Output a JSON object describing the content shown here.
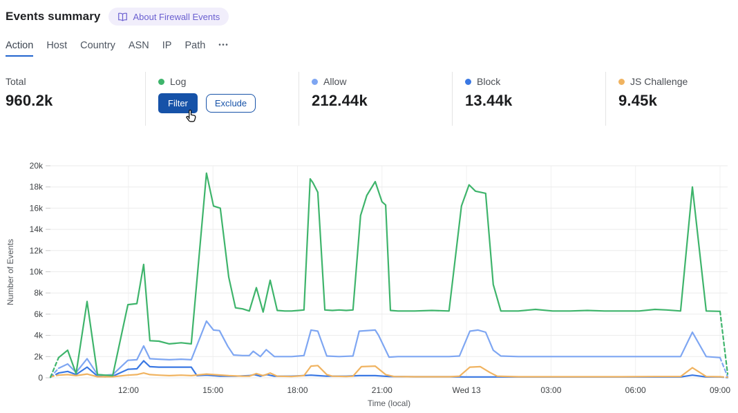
{
  "header": {
    "title": "Events summary",
    "about_label": "About Firewall Events"
  },
  "tabs": {
    "items": [
      {
        "label": "Action",
        "active": true
      },
      {
        "label": "Host"
      },
      {
        "label": "Country"
      },
      {
        "label": "ASN"
      },
      {
        "label": "IP"
      },
      {
        "label": "Path"
      },
      {
        "label": "•••"
      }
    ]
  },
  "stats": {
    "total": {
      "label": "Total",
      "value": "960.2k"
    },
    "log": {
      "label": "Log",
      "filter_label": "Filter",
      "exclude_label": "Exclude"
    },
    "allow": {
      "label": "Allow",
      "value": "212.44k"
    },
    "block": {
      "label": "Block",
      "value": "13.44k"
    },
    "js_challenge": {
      "label": "JS Challenge",
      "value": "9.45k"
    }
  },
  "colors": {
    "log": "#3eb46b",
    "allow": "#7ea6f2",
    "block": "#3a78e3",
    "js_challenge": "#f0b360",
    "accent_blue": "#1652a8",
    "tab_underline": "#2164ce",
    "pill_bg": "#f1eefb",
    "pill_text": "#6a5fd0",
    "grid": "#ebebeb",
    "tick_text": "#3d4043",
    "axis_title": "#55595e"
  },
  "chart_data": {
    "type": "line",
    "title": "",
    "xlabel": "Time (local)",
    "ylabel": "Number of Events",
    "unit": "k",
    "ylim": [
      0,
      20
    ],
    "x_range_hours": [
      0,
      24.04
    ],
    "grid": true,
    "legend_position": "stats-row-above",
    "y_ticks": [
      {
        "v": 0,
        "label": "0"
      },
      {
        "v": 2,
        "label": "2k"
      },
      {
        "v": 4,
        "label": "4k"
      },
      {
        "v": 6,
        "label": "6k"
      },
      {
        "v": 8,
        "label": "8k"
      },
      {
        "v": 10,
        "label": "10k"
      },
      {
        "v": 12,
        "label": "12k"
      },
      {
        "v": 14,
        "label": "14k"
      },
      {
        "v": 16,
        "label": "16k"
      },
      {
        "v": 18,
        "label": "18k"
      },
      {
        "v": 20,
        "label": "20k"
      }
    ],
    "x_ticks": [
      {
        "h": 2.77,
        "label": "12:00"
      },
      {
        "h": 5.77,
        "label": "15:00"
      },
      {
        "h": 8.77,
        "label": "18:00"
      },
      {
        "h": 11.77,
        "label": "21:00"
      },
      {
        "h": 14.77,
        "label": "Wed 13"
      },
      {
        "h": 17.77,
        "label": "03:00"
      },
      {
        "h": 20.77,
        "label": "06:00"
      },
      {
        "h": 23.77,
        "label": "09:00"
      }
    ],
    "series": [
      {
        "id": "log",
        "name": "Log",
        "color_key": "log",
        "dash_head": 2,
        "dash_tail": 2,
        "points": [
          [
            0,
            0.05
          ],
          [
            0.29,
            1.9
          ],
          [
            0.61,
            2.6
          ],
          [
            0.91,
            0.4
          ],
          [
            1.3,
            7.2
          ],
          [
            1.67,
            0.3
          ],
          [
            1.94,
            0.25
          ],
          [
            2.21,
            0.2
          ],
          [
            2.75,
            6.9
          ],
          [
            3.07,
            7.0
          ],
          [
            3.31,
            10.7
          ],
          [
            3.53,
            3.5
          ],
          [
            3.85,
            3.45
          ],
          [
            4.22,
            3.2
          ],
          [
            4.64,
            3.3
          ],
          [
            5.0,
            3.2
          ],
          [
            5.54,
            19.3
          ],
          [
            5.79,
            16.2
          ],
          [
            6.03,
            16.0
          ],
          [
            6.33,
            9.5
          ],
          [
            6.57,
            6.6
          ],
          [
            6.82,
            6.5
          ],
          [
            7.06,
            6.3
          ],
          [
            7.31,
            8.5
          ],
          [
            7.55,
            6.2
          ],
          [
            7.8,
            9.2
          ],
          [
            8.05,
            6.35
          ],
          [
            8.32,
            6.3
          ],
          [
            8.56,
            6.3
          ],
          [
            8.81,
            6.35
          ],
          [
            9.0,
            6.4
          ],
          [
            9.22,
            18.76
          ],
          [
            9.32,
            18.4
          ],
          [
            9.49,
            17.5
          ],
          [
            9.74,
            6.4
          ],
          [
            10.01,
            6.35
          ],
          [
            10.25,
            6.4
          ],
          [
            10.5,
            6.35
          ],
          [
            10.74,
            6.4
          ],
          [
            11.01,
            15.3
          ],
          [
            11.23,
            17.2
          ],
          [
            11.53,
            18.5
          ],
          [
            11.77,
            16.6
          ],
          [
            11.9,
            16.3
          ],
          [
            12.07,
            6.35
          ],
          [
            12.34,
            6.3
          ],
          [
            12.93,
            6.3
          ],
          [
            13.54,
            6.35
          ],
          [
            14.15,
            6.3
          ],
          [
            14.59,
            16.2
          ],
          [
            14.86,
            18.2
          ],
          [
            15.09,
            17.6
          ],
          [
            15.45,
            17.4
          ],
          [
            15.72,
            8.8
          ],
          [
            15.99,
            6.3
          ],
          [
            16.61,
            6.3
          ],
          [
            17.22,
            6.45
          ],
          [
            17.83,
            6.3
          ],
          [
            18.45,
            6.3
          ],
          [
            19.06,
            6.35
          ],
          [
            19.67,
            6.3
          ],
          [
            20.28,
            6.3
          ],
          [
            20.9,
            6.3
          ],
          [
            21.46,
            6.45
          ],
          [
            21.88,
            6.4
          ],
          [
            22.37,
            6.3
          ],
          [
            22.79,
            18.0
          ],
          [
            23.28,
            6.3
          ],
          [
            23.77,
            6.27
          ],
          [
            24.04,
            0.35
          ]
        ]
      },
      {
        "id": "allow",
        "name": "Allow",
        "color_key": "allow",
        "dash_head": 2,
        "dash_tail": 2,
        "points": [
          [
            0,
            0.05
          ],
          [
            0.29,
            0.9
          ],
          [
            0.61,
            1.3
          ],
          [
            0.91,
            0.5
          ],
          [
            1.3,
            1.8
          ],
          [
            1.67,
            0.3
          ],
          [
            1.94,
            0.25
          ],
          [
            2.21,
            0.3
          ],
          [
            2.75,
            1.65
          ],
          [
            3.07,
            1.7
          ],
          [
            3.31,
            3.0
          ],
          [
            3.53,
            1.8
          ],
          [
            3.85,
            1.75
          ],
          [
            4.22,
            1.7
          ],
          [
            4.64,
            1.75
          ],
          [
            5.0,
            1.7
          ],
          [
            5.54,
            5.35
          ],
          [
            5.79,
            4.5
          ],
          [
            6.0,
            4.45
          ],
          [
            6.3,
            2.95
          ],
          [
            6.5,
            2.15
          ],
          [
            6.82,
            2.1
          ],
          [
            7.06,
            2.1
          ],
          [
            7.2,
            2.5
          ],
          [
            7.45,
            2.0
          ],
          [
            7.66,
            2.65
          ],
          [
            7.95,
            2.0
          ],
          [
            8.32,
            2.0
          ],
          [
            8.56,
            2.0
          ],
          [
            8.81,
            2.05
          ],
          [
            9.0,
            2.1
          ],
          [
            9.25,
            4.5
          ],
          [
            9.49,
            4.4
          ],
          [
            9.81,
            2.05
          ],
          [
            10.25,
            2.0
          ],
          [
            10.74,
            2.05
          ],
          [
            10.96,
            4.4
          ],
          [
            11.53,
            4.5
          ],
          [
            11.65,
            4.0
          ],
          [
            12.02,
            1.95
          ],
          [
            12.34,
            2.0
          ],
          [
            12.93,
            2.0
          ],
          [
            13.54,
            2.0
          ],
          [
            14.15,
            2.0
          ],
          [
            14.52,
            2.05
          ],
          [
            14.89,
            4.4
          ],
          [
            15.18,
            4.5
          ],
          [
            15.45,
            4.3
          ],
          [
            15.72,
            2.6
          ],
          [
            15.99,
            2.05
          ],
          [
            16.61,
            2.0
          ],
          [
            17.22,
            2.0
          ],
          [
            17.83,
            2.0
          ],
          [
            18.45,
            2.0
          ],
          [
            19.06,
            2.0
          ],
          [
            19.67,
            2.0
          ],
          [
            20.28,
            2.0
          ],
          [
            20.9,
            2.0
          ],
          [
            21.46,
            2.0
          ],
          [
            22.37,
            2.0
          ],
          [
            22.79,
            4.3
          ],
          [
            23.28,
            2.0
          ],
          [
            23.77,
            1.9
          ],
          [
            24.04,
            0.1
          ]
        ]
      },
      {
        "id": "block",
        "name": "Block",
        "color_key": "block",
        "dash_head": 2,
        "dash_tail": 2,
        "points": [
          [
            0,
            0.05
          ],
          [
            0.29,
            0.45
          ],
          [
            0.61,
            0.6
          ],
          [
            0.91,
            0.3
          ],
          [
            1.3,
            1.0
          ],
          [
            1.67,
            0.15
          ],
          [
            1.94,
            0.1
          ],
          [
            2.21,
            0.15
          ],
          [
            2.75,
            0.8
          ],
          [
            3.07,
            0.85
          ],
          [
            3.31,
            1.6
          ],
          [
            3.53,
            1.05
          ],
          [
            3.85,
            1.0
          ],
          [
            4.22,
            1.0
          ],
          [
            4.64,
            1.0
          ],
          [
            5.0,
            1.0
          ],
          [
            5.2,
            0.2
          ],
          [
            5.54,
            0.25
          ],
          [
            6.03,
            0.15
          ],
          [
            6.57,
            0.15
          ],
          [
            7.06,
            0.2
          ],
          [
            7.24,
            0.3
          ],
          [
            7.45,
            0.15
          ],
          [
            7.68,
            0.3
          ],
          [
            7.95,
            0.15
          ],
          [
            8.56,
            0.15
          ],
          [
            9.25,
            0.25
          ],
          [
            9.49,
            0.2
          ],
          [
            9.81,
            0.15
          ],
          [
            10.5,
            0.15
          ],
          [
            10.96,
            0.2
          ],
          [
            11.53,
            0.2
          ],
          [
            12.02,
            0.12
          ],
          [
            12.93,
            0.1
          ],
          [
            13.54,
            0.1
          ],
          [
            14.15,
            0.1
          ],
          [
            14.72,
            0.08
          ],
          [
            15.45,
            0.08
          ],
          [
            16.61,
            0.08
          ],
          [
            17.83,
            0.08
          ],
          [
            19.06,
            0.08
          ],
          [
            20.28,
            0.08
          ],
          [
            21.46,
            0.08
          ],
          [
            22.37,
            0.08
          ],
          [
            22.79,
            0.25
          ],
          [
            23.28,
            0.08
          ],
          [
            23.77,
            0.08
          ],
          [
            24.04,
            0.02
          ]
        ]
      },
      {
        "id": "js_challenge",
        "name": "JS Challenge",
        "color_key": "js_challenge",
        "dash_head": 2,
        "dash_tail": 2,
        "points": [
          [
            0,
            0.1
          ],
          [
            0.29,
            0.25
          ],
          [
            0.61,
            0.3
          ],
          [
            0.91,
            0.2
          ],
          [
            1.3,
            0.35
          ],
          [
            1.67,
            0.1
          ],
          [
            2.21,
            0.1
          ],
          [
            2.75,
            0.25
          ],
          [
            3.07,
            0.3
          ],
          [
            3.31,
            0.45
          ],
          [
            3.53,
            0.3
          ],
          [
            3.85,
            0.25
          ],
          [
            4.22,
            0.2
          ],
          [
            4.64,
            0.25
          ],
          [
            5.0,
            0.2
          ],
          [
            5.54,
            0.35
          ],
          [
            5.79,
            0.3
          ],
          [
            6.33,
            0.2
          ],
          [
            6.82,
            0.15
          ],
          [
            7.06,
            0.15
          ],
          [
            7.31,
            0.4
          ],
          [
            7.55,
            0.2
          ],
          [
            7.8,
            0.45
          ],
          [
            8.05,
            0.15
          ],
          [
            8.56,
            0.12
          ],
          [
            9.0,
            0.2
          ],
          [
            9.25,
            1.1
          ],
          [
            9.49,
            1.15
          ],
          [
            9.81,
            0.3
          ],
          [
            10.01,
            0.15
          ],
          [
            10.5,
            0.12
          ],
          [
            10.74,
            0.15
          ],
          [
            11.04,
            1.05
          ],
          [
            11.53,
            1.1
          ],
          [
            11.9,
            0.3
          ],
          [
            12.2,
            0.12
          ],
          [
            12.93,
            0.1
          ],
          [
            13.54,
            0.1
          ],
          [
            14.15,
            0.1
          ],
          [
            14.52,
            0.15
          ],
          [
            14.89,
            1.0
          ],
          [
            15.26,
            1.05
          ],
          [
            15.6,
            0.5
          ],
          [
            15.86,
            0.15
          ],
          [
            16.61,
            0.1
          ],
          [
            17.83,
            0.1
          ],
          [
            19.06,
            0.1
          ],
          [
            20.28,
            0.1
          ],
          [
            21.46,
            0.12
          ],
          [
            22.37,
            0.12
          ],
          [
            22.79,
            0.95
          ],
          [
            23.28,
            0.12
          ],
          [
            23.77,
            0.1
          ],
          [
            24.04,
            0.05
          ]
        ]
      }
    ]
  }
}
